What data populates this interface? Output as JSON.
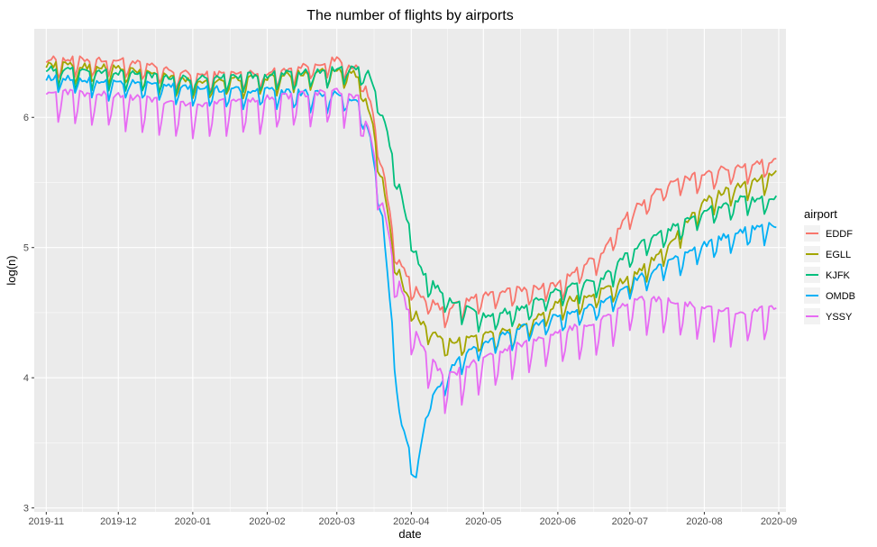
{
  "chart_data": {
    "type": "line",
    "title": "The number of flights by airports",
    "xlabel": "date",
    "ylabel": "log(n)",
    "xlim": [
      "2019-10-27",
      "2020-09-04"
    ],
    "ylim": [
      2.97,
      6.68
    ],
    "x_ticks": [
      "2019-11",
      "2019-12",
      "2020-01",
      "2020-02",
      "2020-03",
      "2020-04",
      "2020-05",
      "2020-06",
      "2020-07",
      "2020-08",
      "2020-09"
    ],
    "y_ticks": [
      "3",
      "4",
      "5",
      "6"
    ],
    "legend_title": "airport",
    "grid": true,
    "series": [
      {
        "name": "EDDF",
        "color": "#F8766D",
        "anchors": [
          [
            "2019-11-01",
            6.42
          ],
          [
            "2019-12-01",
            6.42
          ],
          [
            "2020-01-01",
            6.3
          ],
          [
            "2020-02-01",
            6.32
          ],
          [
            "2020-03-01",
            6.42
          ],
          [
            "2020-03-10",
            6.35
          ],
          [
            "2020-03-15",
            6.1
          ],
          [
            "2020-03-20",
            5.6
          ],
          [
            "2020-03-25",
            5.0
          ],
          [
            "2020-03-30",
            4.75
          ],
          [
            "2020-04-05",
            4.6
          ],
          [
            "2020-04-15",
            4.5
          ],
          [
            "2020-05-01",
            4.62
          ],
          [
            "2020-05-15",
            4.65
          ],
          [
            "2020-06-01",
            4.7
          ],
          [
            "2020-06-20",
            4.95
          ],
          [
            "2020-07-01",
            5.25
          ],
          [
            "2020-07-15",
            5.45
          ],
          [
            "2020-08-01",
            5.55
          ],
          [
            "2020-08-15",
            5.6
          ],
          [
            "2020-08-31",
            5.65
          ]
        ]
      },
      {
        "name": "EGLL",
        "color": "#A3A500",
        "anchors": [
          [
            "2019-11-01",
            6.38
          ],
          [
            "2019-12-01",
            6.36
          ],
          [
            "2020-01-01",
            6.25
          ],
          [
            "2020-02-01",
            6.28
          ],
          [
            "2020-03-01",
            6.35
          ],
          [
            "2020-03-10",
            6.3
          ],
          [
            "2020-03-15",
            6.0
          ],
          [
            "2020-03-20",
            5.5
          ],
          [
            "2020-03-25",
            4.9
          ],
          [
            "2020-03-30",
            4.6
          ],
          [
            "2020-04-05",
            4.4
          ],
          [
            "2020-04-15",
            4.25
          ],
          [
            "2020-05-01",
            4.3
          ],
          [
            "2020-05-15",
            4.35
          ],
          [
            "2020-06-01",
            4.55
          ],
          [
            "2020-06-20",
            4.65
          ],
          [
            "2020-07-01",
            4.75
          ],
          [
            "2020-07-15",
            4.95
          ],
          [
            "2020-08-01",
            5.35
          ],
          [
            "2020-08-15",
            5.45
          ],
          [
            "2020-08-31",
            5.55
          ]
        ]
      },
      {
        "name": "KJFK",
        "color": "#00BF7D",
        "anchors": [
          [
            "2019-11-01",
            6.35
          ],
          [
            "2019-12-01",
            6.32
          ],
          [
            "2020-01-01",
            6.28
          ],
          [
            "2020-02-01",
            6.3
          ],
          [
            "2020-03-01",
            6.35
          ],
          [
            "2020-03-10",
            6.35
          ],
          [
            "2020-03-15",
            6.3
          ],
          [
            "2020-03-20",
            6.0
          ],
          [
            "2020-03-25",
            5.6
          ],
          [
            "2020-03-30",
            5.2
          ],
          [
            "2020-04-05",
            4.8
          ],
          [
            "2020-04-15",
            4.6
          ],
          [
            "2020-05-01",
            4.45
          ],
          [
            "2020-05-15",
            4.5
          ],
          [
            "2020-06-01",
            4.65
          ],
          [
            "2020-06-20",
            4.75
          ],
          [
            "2020-07-01",
            4.95
          ],
          [
            "2020-07-15",
            5.1
          ],
          [
            "2020-08-01",
            5.25
          ],
          [
            "2020-08-15",
            5.35
          ],
          [
            "2020-08-31",
            5.35
          ]
        ]
      },
      {
        "name": "OMDB",
        "color": "#00B0F6",
        "anchors": [
          [
            "2019-11-01",
            6.28
          ],
          [
            "2019-12-01",
            6.25
          ],
          [
            "2020-01-01",
            6.2
          ],
          [
            "2020-02-01",
            6.18
          ],
          [
            "2020-03-01",
            6.15
          ],
          [
            "2020-03-10",
            6.1
          ],
          [
            "2020-03-15",
            5.8
          ],
          [
            "2020-03-20",
            5.2
          ],
          [
            "2020-03-24",
            4.4
          ],
          [
            "2020-03-27",
            3.7
          ],
          [
            "2020-04-03",
            3.2
          ],
          [
            "2020-04-08",
            3.8
          ],
          [
            "2020-04-20",
            4.1
          ],
          [
            "2020-05-01",
            4.25
          ],
          [
            "2020-05-15",
            4.35
          ],
          [
            "2020-06-01",
            4.45
          ],
          [
            "2020-06-20",
            4.55
          ],
          [
            "2020-07-01",
            4.7
          ],
          [
            "2020-07-15",
            4.85
          ],
          [
            "2020-08-01",
            5.0
          ],
          [
            "2020-08-15",
            5.1
          ],
          [
            "2020-08-31",
            5.15
          ]
        ]
      },
      {
        "name": "YSSY",
        "color": "#E76BF3",
        "anchors": [
          [
            "2019-11-01",
            6.15
          ],
          [
            "2019-12-01",
            6.12
          ],
          [
            "2020-01-01",
            6.05
          ],
          [
            "2020-02-01",
            6.1
          ],
          [
            "2020-03-01",
            6.15
          ],
          [
            "2020-03-10",
            6.1
          ],
          [
            "2020-03-15",
            5.8
          ],
          [
            "2020-03-20",
            5.3
          ],
          [
            "2020-03-25",
            4.8
          ],
          [
            "2020-03-30",
            4.5
          ],
          [
            "2020-04-05",
            4.2
          ],
          [
            "2020-04-15",
            3.95
          ],
          [
            "2020-05-01",
            4.1
          ],
          [
            "2020-05-15",
            4.2
          ],
          [
            "2020-06-01",
            4.3
          ],
          [
            "2020-06-20",
            4.4
          ],
          [
            "2020-07-01",
            4.55
          ],
          [
            "2020-07-15",
            4.55
          ],
          [
            "2020-08-01",
            4.5
          ],
          [
            "2020-08-15",
            4.45
          ],
          [
            "2020-08-31",
            4.5
          ]
        ]
      }
    ]
  }
}
